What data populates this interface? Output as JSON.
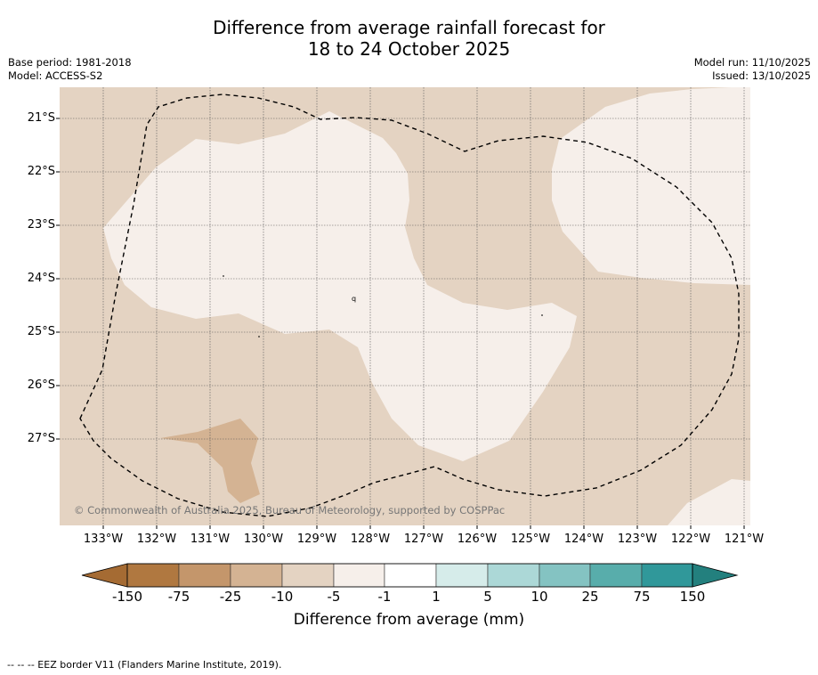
{
  "title": {
    "line1": "Difference from average rainfall forecast for",
    "line2": "18 to 24 October 2025"
  },
  "meta_left": {
    "base_period": "Base period: 1981-2018",
    "model": "Model: ACCESS-S2"
  },
  "meta_right": {
    "model_run": "Model run: 11/10/2025",
    "issued": "Issued: 13/10/2025"
  },
  "map": {
    "lat_labels": [
      "21°S",
      "22°S",
      "23°S",
      "24°S",
      "25°S",
      "26°S",
      "27°S"
    ],
    "lon_labels": [
      "133°W",
      "132°W",
      "131°W",
      "130°W",
      "129°W",
      "128°W",
      "127°W",
      "126°W",
      "125°W",
      "124°W",
      "123°W",
      "122°W",
      "121°W"
    ],
    "copyright": "© Commonwealth of Australia 2025, Bureau of Meteorology, supported by COSPPac",
    "small_marks": [
      "q"
    ]
  },
  "colorbar": {
    "labels": [
      "-150",
      "-75",
      "-25",
      "-10",
      "-5",
      "-1",
      "1",
      "5",
      "10",
      "25",
      "75",
      "150"
    ],
    "colors": [
      "#a56b33",
      "#b07840",
      "#c4966b",
      "#d4b393",
      "#e4d3c2",
      "#f6efea",
      "#ffffff",
      "#d6ecea",
      "#acd8d7",
      "#84c3c2",
      "#58adab",
      "#30989a",
      "#23807e"
    ],
    "title": "Difference from average (mm)"
  },
  "footer": "--  --  -- EEZ border V11 (Flanders Marine Institute, 2019)."
}
